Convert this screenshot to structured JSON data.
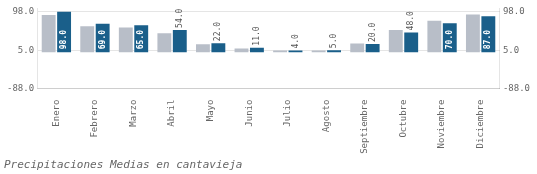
{
  "chart_data": {
    "type": "bar",
    "title": "Precipitaciones Medias en cantavieja",
    "categories": [
      "Enero",
      "Febrero",
      "Marzo",
      "Abril",
      "Mayo",
      "Junio",
      "Julio",
      "Agosto",
      "Septiembre",
      "Octubre",
      "Noviembre",
      "Diciembre"
    ],
    "series": [
      {
        "color": "#b8bec8",
        "values": [
          90.0,
          63.0,
          60.0,
          46.0,
          19.0,
          9.0,
          4.0,
          4.0,
          21.0,
          54.0,
          76.0,
          91.0
        ]
      },
      {
        "color": "#1a5f8a",
        "values": [
          98.0,
          69.0,
          65.0,
          54.0,
          22.0,
          11.0,
          4.0,
          5.0,
          20.0,
          48.0,
          70.0,
          87.0
        ],
        "data_labels": true,
        "value_labels": [
          "98.0",
          "69.0",
          "65.0",
          "54.0",
          "22.0",
          "11.0",
          "4.0",
          "5.0",
          "20.0",
          "48.0",
          "70.0",
          "87.0"
        ]
      }
    ],
    "ylim": [
      -88,
      106
    ],
    "yticks": [
      {
        "value": -88,
        "label": "-88.0"
      },
      {
        "value": 5,
        "label": "5.0"
      },
      {
        "value": 98,
        "label": "98.0"
      }
    ],
    "y2lim": [
      -88,
      106
    ],
    "y2ticks": [
      {
        "value": -88,
        "label": "-88.0"
      },
      {
        "value": 5,
        "label": "5.0"
      },
      {
        "value": 98,
        "label": "98.0"
      }
    ],
    "grid": true
  }
}
